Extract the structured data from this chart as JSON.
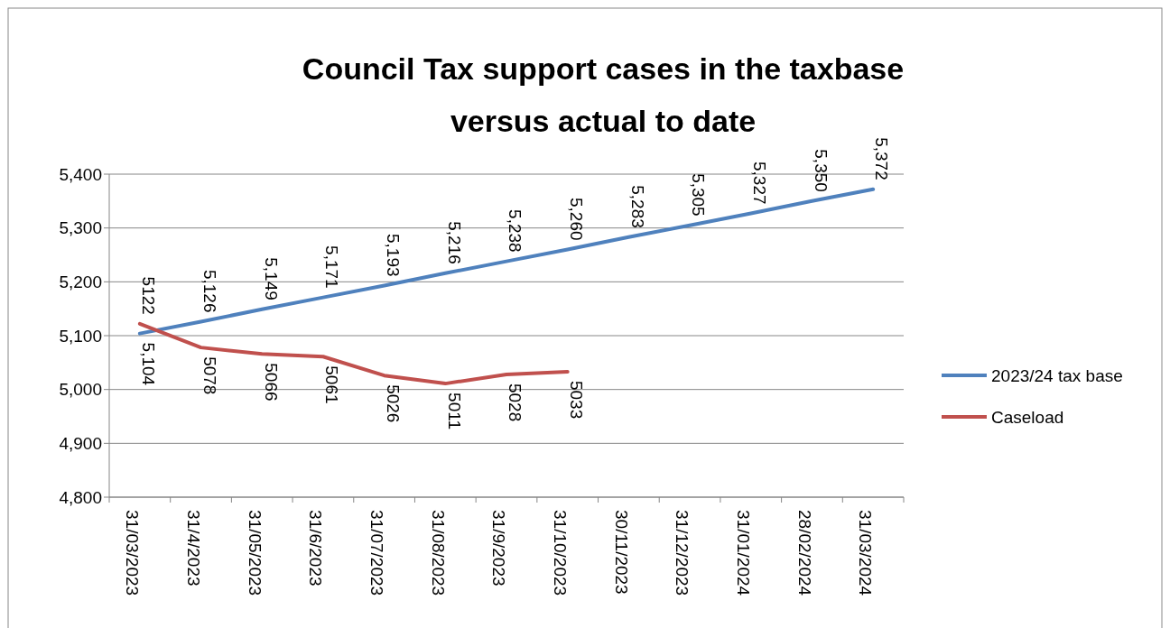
{
  "chart_data": {
    "type": "line",
    "title": "Council Tax support cases in the taxbase versus actual to date",
    "categories": [
      "31/03/2023",
      "31/4/2023",
      "31/05/2023",
      "31/6/2023",
      "31/07/2023",
      "31/08/2023",
      "31/9/2023",
      "31/10/2023",
      "30/11/2023",
      "31/12/2023",
      "31/01/2024",
      "28/02/2024",
      "31/03/2024"
    ],
    "series": [
      {
        "name": "2023/24 tax base",
        "color": "#4f81bd",
        "values": [
          5104,
          5126,
          5149,
          5171,
          5193,
          5216,
          5238,
          5260,
          5283,
          5305,
          5327,
          5350,
          5372
        ],
        "value_labels": [
          "5,104",
          "5,126",
          "5,149",
          "5,171",
          "5,193",
          "5,216",
          "5,238",
          "5,260",
          "5,283",
          "5,305",
          "5,327",
          "5,350",
          "5,372"
        ]
      },
      {
        "name": "Caseload",
        "color": "#c0504d",
        "values": [
          5122,
          5078,
          5066,
          5061,
          5026,
          5011,
          5028,
          5033,
          null,
          null,
          null,
          null,
          null
        ],
        "value_labels": [
          "5122",
          "5078",
          "5066",
          "5061",
          "5026",
          "5011",
          "5028",
          "5033",
          null,
          null,
          null,
          null,
          null
        ]
      }
    ],
    "ylim": [
      4800,
      5400
    ],
    "yticks": [
      {
        "value": 4800,
        "label": "4,800"
      },
      {
        "value": 4900,
        "label": "4,900"
      },
      {
        "value": 5000,
        "label": "5,000"
      },
      {
        "value": 5100,
        "label": "5,100"
      },
      {
        "value": 5200,
        "label": "5,200"
      },
      {
        "value": 5300,
        "label": "5,300"
      },
      {
        "value": 5400,
        "label": "5,400"
      }
    ],
    "grid": "y",
    "legend": "right",
    "marker": "none",
    "line_style": "solid"
  }
}
